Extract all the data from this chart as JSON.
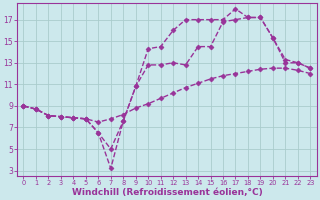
{
  "bg_color": "#cce8ec",
  "grid_color": "#aacccc",
  "line_color": "#993399",
  "marker": "D",
  "markersize": 2.5,
  "linewidth": 1.0,
  "xlabel": "Windchill (Refroidissement éolien,°C)",
  "xlabel_fontsize": 6.5,
  "tick_fontsize": 5.5,
  "ylabel_ticks": [
    3,
    5,
    7,
    9,
    11,
    13,
    15,
    17
  ],
  "xlabel_ticks": [
    0,
    1,
    2,
    3,
    4,
    5,
    6,
    7,
    8,
    9,
    10,
    11,
    12,
    13,
    14,
    15,
    16,
    17,
    18,
    19,
    20,
    21,
    22,
    23
  ],
  "xlim": [
    -0.5,
    23.5
  ],
  "ylim": [
    2.5,
    18.5
  ],
  "series": [
    {
      "x": [
        0,
        1,
        2,
        3,
        4,
        5,
        6,
        7,
        8,
        9,
        10,
        11,
        12,
        13,
        14,
        15,
        16,
        17,
        18,
        19,
        20,
        21,
        22,
        23
      ],
      "y": [
        9,
        8.7,
        8.1,
        8.0,
        7.9,
        7.8,
        7.5,
        7.8,
        8.2,
        8.8,
        9.2,
        9.7,
        10.2,
        10.7,
        11.1,
        11.5,
        11.8,
        12.0,
        12.2,
        12.4,
        12.5,
        12.5,
        12.3,
        12.0
      ]
    },
    {
      "x": [
        0,
        1,
        2,
        3,
        4,
        5,
        6,
        7,
        8,
        9,
        10,
        11,
        12,
        13,
        14,
        15,
        16,
        17,
        18,
        19,
        20,
        21,
        22,
        23
      ],
      "y": [
        9,
        8.7,
        8.1,
        8.0,
        7.9,
        7.8,
        6.5,
        5.0,
        7.6,
        10.8,
        12.8,
        12.8,
        13.0,
        12.8,
        14.5,
        14.5,
        16.8,
        17.0,
        17.2,
        17.2,
        15.3,
        13.3,
        13.0,
        12.5
      ]
    },
    {
      "x": [
        0,
        1,
        2,
        3,
        4,
        5,
        6,
        7,
        8,
        9,
        10,
        11,
        12,
        13,
        14,
        15,
        16,
        17,
        18,
        19,
        20,
        21,
        22,
        23
      ],
      "y": [
        9,
        8.7,
        8.1,
        8.0,
        7.9,
        7.8,
        6.5,
        3.2,
        7.6,
        10.8,
        14.3,
        14.5,
        16.0,
        17.0,
        17.0,
        17.0,
        17.0,
        18.0,
        17.2,
        17.2,
        15.3,
        13.0,
        13.0,
        12.5
      ]
    }
  ]
}
